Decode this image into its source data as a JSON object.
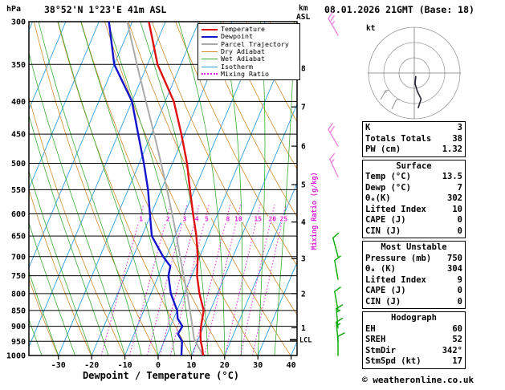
{
  "header": {
    "station": "38°52'N 1°23'E 41m ASL",
    "datetime": "08.01.2026 21GMT (Base: 18)"
  },
  "labels": {
    "pressure_unit": "hPa",
    "km": "km",
    "asl": "ASL",
    "kt": "kt",
    "lcl": "LCL",
    "xaxis": "Dewpoint / Temperature (°C)",
    "mixing_ratio_axis": "Mixing Ratio (g/kg)"
  },
  "footer": {
    "copyright": "© weatheronline.co.uk"
  },
  "colors": {
    "temperature": "#e01010",
    "dewpoint": "#1414cc",
    "parcel": "#aaaaaa",
    "dry_adiabat": "#cf8a2e",
    "wet_adiabat": "#3aaa35",
    "isotherm": "#2f9fe0",
    "mixing_ratio": "#dd22dd",
    "barb_upper": "#ee86dd",
    "barb_low": "#00a800",
    "frame": "#000000"
  },
  "legend": {
    "items": [
      {
        "label": "Temperature",
        "color": "temperature",
        "style": "solid",
        "weight": 2
      },
      {
        "label": "Dewpoint",
        "color": "dewpoint",
        "style": "solid",
        "weight": 2
      },
      {
        "label": "Parcel Trajectory",
        "color": "parcel",
        "style": "solid",
        "weight": 2
      },
      {
        "label": "Dry Adiabat",
        "color": "dry_adiabat",
        "style": "solid",
        "weight": 1
      },
      {
        "label": "Wet Adiabat",
        "color": "wet_adiabat",
        "style": "solid",
        "weight": 1
      },
      {
        "label": "Isotherm",
        "color": "isotherm",
        "style": "solid",
        "weight": 1
      },
      {
        "label": "Mixing Ratio",
        "color": "mixing_ratio",
        "style": "dotted",
        "weight": 2
      }
    ]
  },
  "indices": {
    "sections": [
      {
        "title": null,
        "rows": [
          [
            "K",
            "3"
          ],
          [
            "Totals Totals",
            "38"
          ],
          [
            "PW (cm)",
            "1.32"
          ]
        ]
      },
      {
        "title": "Surface",
        "rows": [
          [
            "Temp (°C)",
            "13.5"
          ],
          [
            "Dewp (°C)",
            "7"
          ],
          [
            "θₑ(K)",
            "302"
          ],
          [
            "Lifted Index",
            "10"
          ],
          [
            "CAPE (J)",
            "0"
          ],
          [
            "CIN (J)",
            "0"
          ]
        ]
      },
      {
        "title": "Most Unstable",
        "rows": [
          [
            "Pressure (mb)",
            "750"
          ],
          [
            "θₑ (K)",
            "304"
          ],
          [
            "Lifted Index",
            "9"
          ],
          [
            "CAPE (J)",
            "0"
          ],
          [
            "CIN (J)",
            "0"
          ]
        ]
      },
      {
        "title": "Hodograph",
        "rows": [
          [
            "EH",
            "60"
          ],
          [
            "SREH",
            "52"
          ],
          [
            "StmDir",
            "342°"
          ],
          [
            "StmSpd (kt)",
            "17"
          ]
        ]
      }
    ]
  },
  "chart_data": {
    "type": "skewt_logp_sounding",
    "pressure_axis": {
      "top_hPa": 300,
      "bottom_hPa": 1000,
      "scale": "log"
    },
    "pressure_levels_hPa": [
      300,
      350,
      400,
      450,
      500,
      550,
      600,
      650,
      700,
      750,
      800,
      850,
      900,
      950,
      1000
    ],
    "temp_ticks_C": [
      -30,
      -20,
      -10,
      0,
      10,
      20,
      30,
      40
    ],
    "km_asl_ticks": [
      {
        "km": 1,
        "p": 905
      },
      {
        "km": 2,
        "p": 800
      },
      {
        "km": 3,
        "p": 705
      },
      {
        "km": 4,
        "p": 618
      },
      {
        "km": 5,
        "p": 540
      },
      {
        "km": 6,
        "p": 470
      },
      {
        "km": 7,
        "p": 408
      },
      {
        "km": 8,
        "p": 355
      }
    ],
    "mixing_ratio_lines_gkg": [
      1,
      2,
      3,
      4,
      5,
      8,
      10,
      15,
      20,
      25
    ],
    "dry_adiabats_thetaK": {
      "min": 213,
      "max": 393,
      "step": 10
    },
    "wet_adiabats_startC": {
      "min": -40,
      "max": 35,
      "step": 5
    },
    "isotherms_C": {
      "min": -120,
      "max": 40,
      "step": 10
    },
    "lcl_hPa": 945,
    "temperature_profile": [
      [
        1000,
        13.5
      ],
      [
        975,
        12.4
      ],
      [
        950,
        11.0
      ],
      [
        925,
        10.0
      ],
      [
        900,
        9.2
      ],
      [
        875,
        8.6
      ],
      [
        850,
        8.0
      ],
      [
        800,
        4.6
      ],
      [
        750,
        1.6
      ],
      [
        700,
        -0.6
      ],
      [
        650,
        -3.6
      ],
      [
        600,
        -7.4
      ],
      [
        550,
        -11.4
      ],
      [
        500,
        -15.6
      ],
      [
        450,
        -21.0
      ],
      [
        400,
        -27.4
      ],
      [
        350,
        -37.0
      ],
      [
        300,
        -45.0
      ]
    ],
    "dewpoint_profile": [
      [
        1000,
        7.0
      ],
      [
        975,
        6.2
      ],
      [
        950,
        5.4
      ],
      [
        925,
        3.2
      ],
      [
        900,
        3.6
      ],
      [
        875,
        1.2
      ],
      [
        850,
        0.0
      ],
      [
        800,
        -4.0
      ],
      [
        750,
        -7.0
      ],
      [
        725,
        -7.6
      ],
      [
        700,
        -11.0
      ],
      [
        650,
        -17.0
      ],
      [
        600,
        -20.4
      ],
      [
        550,
        -24.0
      ],
      [
        500,
        -28.6
      ],
      [
        450,
        -34.0
      ],
      [
        400,
        -40.0
      ],
      [
        350,
        -50.0
      ],
      [
        300,
        -57.0
      ]
    ],
    "parcel_profile": [
      [
        1000,
        13.5
      ],
      [
        950,
        9.4
      ],
      [
        940,
        8.6
      ],
      [
        900,
        6.6
      ],
      [
        850,
        3.9
      ],
      [
        800,
        0.9
      ],
      [
        750,
        -2.4
      ],
      [
        700,
        -5.9
      ],
      [
        650,
        -9.6
      ],
      [
        600,
        -13.7
      ],
      [
        550,
        -18.3
      ],
      [
        500,
        -23.4
      ],
      [
        450,
        -29.2
      ],
      [
        400,
        -35.8
      ],
      [
        350,
        -43.2
      ],
      [
        300,
        -51.5
      ]
    ],
    "wind_barbs": [
      {
        "p": 315,
        "kt": 25,
        "dir": 330,
        "level": "upper"
      },
      {
        "p": 470,
        "kt": 20,
        "dir": 330,
        "level": "upper"
      },
      {
        "p": 525,
        "kt": 15,
        "dir": 335,
        "level": "upper"
      },
      {
        "p": 700,
        "kt": 10,
        "dir": 345,
        "level": "low"
      },
      {
        "p": 760,
        "kt": 10,
        "dir": 350,
        "level": "low"
      },
      {
        "p": 850,
        "kt": 10,
        "dir": 350,
        "level": "low"
      },
      {
        "p": 905,
        "kt": 15,
        "dir": 355,
        "level": "low"
      },
      {
        "p": 950,
        "kt": 15,
        "dir": 355,
        "level": "low"
      },
      {
        "p": 1000,
        "kt": 10,
        "dir": 360,
        "level": "low"
      }
    ],
    "hodograph": {
      "unit": "kt",
      "rings_kt": [
        10,
        20,
        30
      ],
      "trace_uv_kt": [
        [
          1,
          -2
        ],
        [
          0.5,
          -7
        ],
        [
          2,
          -12
        ],
        [
          4.5,
          -17
        ],
        [
          2.5,
          -23
        ]
      ]
    }
  }
}
